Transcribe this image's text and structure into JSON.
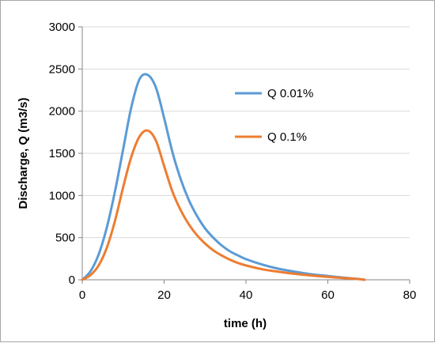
{
  "chart_data": {
    "type": "line",
    "title": "",
    "xlabel": "time (h)",
    "ylabel": "Discharge,  Q (m3/s)",
    "xlim": [
      0,
      80
    ],
    "ylim": [
      0,
      3000
    ],
    "x_ticks": [
      0,
      20,
      40,
      60,
      80
    ],
    "y_ticks": [
      0,
      500,
      1000,
      1500,
      2000,
      2500,
      3000
    ],
    "grid": "horizontal",
    "legend_position": "right",
    "x": [
      0,
      2,
      4,
      6,
      8,
      10,
      12,
      14,
      16,
      18,
      20,
      22,
      24,
      26,
      28,
      30,
      32,
      34,
      36,
      38,
      40,
      44,
      48,
      52,
      56,
      60,
      64,
      67,
      69
    ],
    "series": [
      {
        "name": "Q 0.01%",
        "color": "#5b9bd5",
        "values": [
          0,
          100,
          300,
          620,
          1050,
          1550,
          2050,
          2380,
          2430,
          2280,
          1920,
          1520,
          1200,
          950,
          760,
          610,
          500,
          410,
          340,
          290,
          245,
          180,
          130,
          95,
          65,
          45,
          25,
          12,
          0
        ]
      },
      {
        "name": "Q 0.1%",
        "color": "#ed7d31",
        "values": [
          0,
          55,
          170,
          380,
          700,
          1100,
          1460,
          1700,
          1770,
          1650,
          1350,
          1050,
          830,
          660,
          530,
          430,
          350,
          290,
          240,
          200,
          170,
          125,
          95,
          70,
          50,
          35,
          20,
          10,
          0
        ]
      }
    ]
  }
}
